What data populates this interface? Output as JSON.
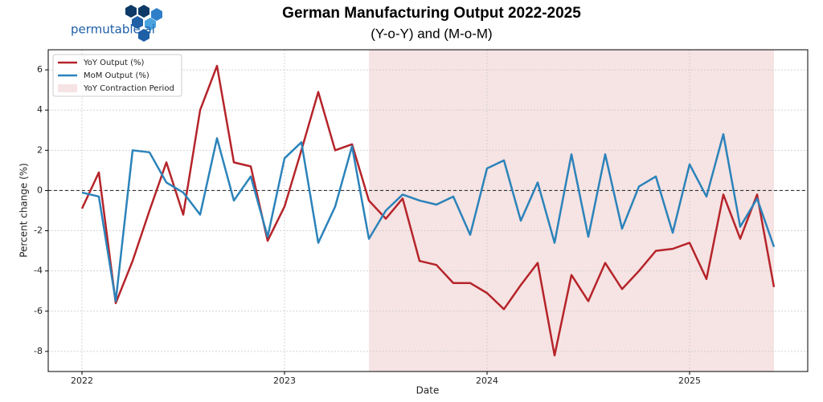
{
  "logo": "permutable.ai",
  "chart_data": {
    "type": "line",
    "title": "German Manufacturing Output 2022-2025",
    "subtitle": "(Y-o-Y) and (M-o-M)",
    "xlabel": "Date",
    "ylabel": "Percent change (%)",
    "categories": [
      "2022",
      null,
      null,
      null,
      null,
      null,
      null,
      null,
      null,
      null,
      null,
      null,
      "2023",
      null,
      null,
      null,
      null,
      null,
      null,
      null,
      null,
      null,
      null,
      null,
      "2024",
      null,
      null,
      null,
      null,
      null,
      null,
      null,
      null,
      null,
      null,
      null,
      "2025",
      null,
      null,
      null,
      null,
      null
    ],
    "series": [
      {
        "name": "YoY Output (%)",
        "color": "#b5242a",
        "values": [
          -0.9,
          0.9,
          -5.6,
          -3.5,
          -1.0,
          1.4,
          -1.2,
          4.0,
          6.2,
          1.4,
          1.2,
          -2.5,
          -0.8,
          2.0,
          4.9,
          2.0,
          2.3,
          -0.5,
          -1.4,
          -0.4,
          -3.5,
          -3.7,
          -4.6,
          -4.6,
          -5.1,
          -5.9,
          -4.7,
          -3.6,
          -8.2,
          -4.2,
          -5.5,
          -3.6,
          -4.9,
          -4.0,
          -3.0,
          -2.9,
          -2.6,
          -4.4,
          -0.2,
          -2.4,
          -0.2,
          -4.8
        ]
      },
      {
        "name": "MoM Output (%)",
        "color": "#2b83ba",
        "values": [
          -0.1,
          -0.3,
          -5.5,
          2.0,
          1.9,
          0.4,
          -0.1,
          -1.2,
          2.6,
          -0.5,
          0.7,
          -2.3,
          1.6,
          2.4,
          -2.6,
          -0.8,
          2.2,
          -2.4,
          -1.0,
          -0.2,
          -0.5,
          -0.7,
          -0.3,
          -2.2,
          1.1,
          1.5,
          -1.5,
          0.4,
          -2.6,
          1.8,
          -2.3,
          1.8,
          -1.9,
          0.2,
          0.7,
          -2.1,
          1.3,
          -0.3,
          2.8,
          -1.8,
          -0.4,
          -2.8
        ]
      }
    ],
    "shade": {
      "name": "YoY Contraction Period",
      "color": "#f6e3e3",
      "start": 17,
      "end": 41
    },
    "zero_line": 0,
    "ylim": [
      -9,
      7
    ],
    "yticks": [
      -8,
      -6,
      -4,
      -2,
      0,
      2,
      4,
      6
    ],
    "grid": true,
    "legend": "upper left"
  }
}
